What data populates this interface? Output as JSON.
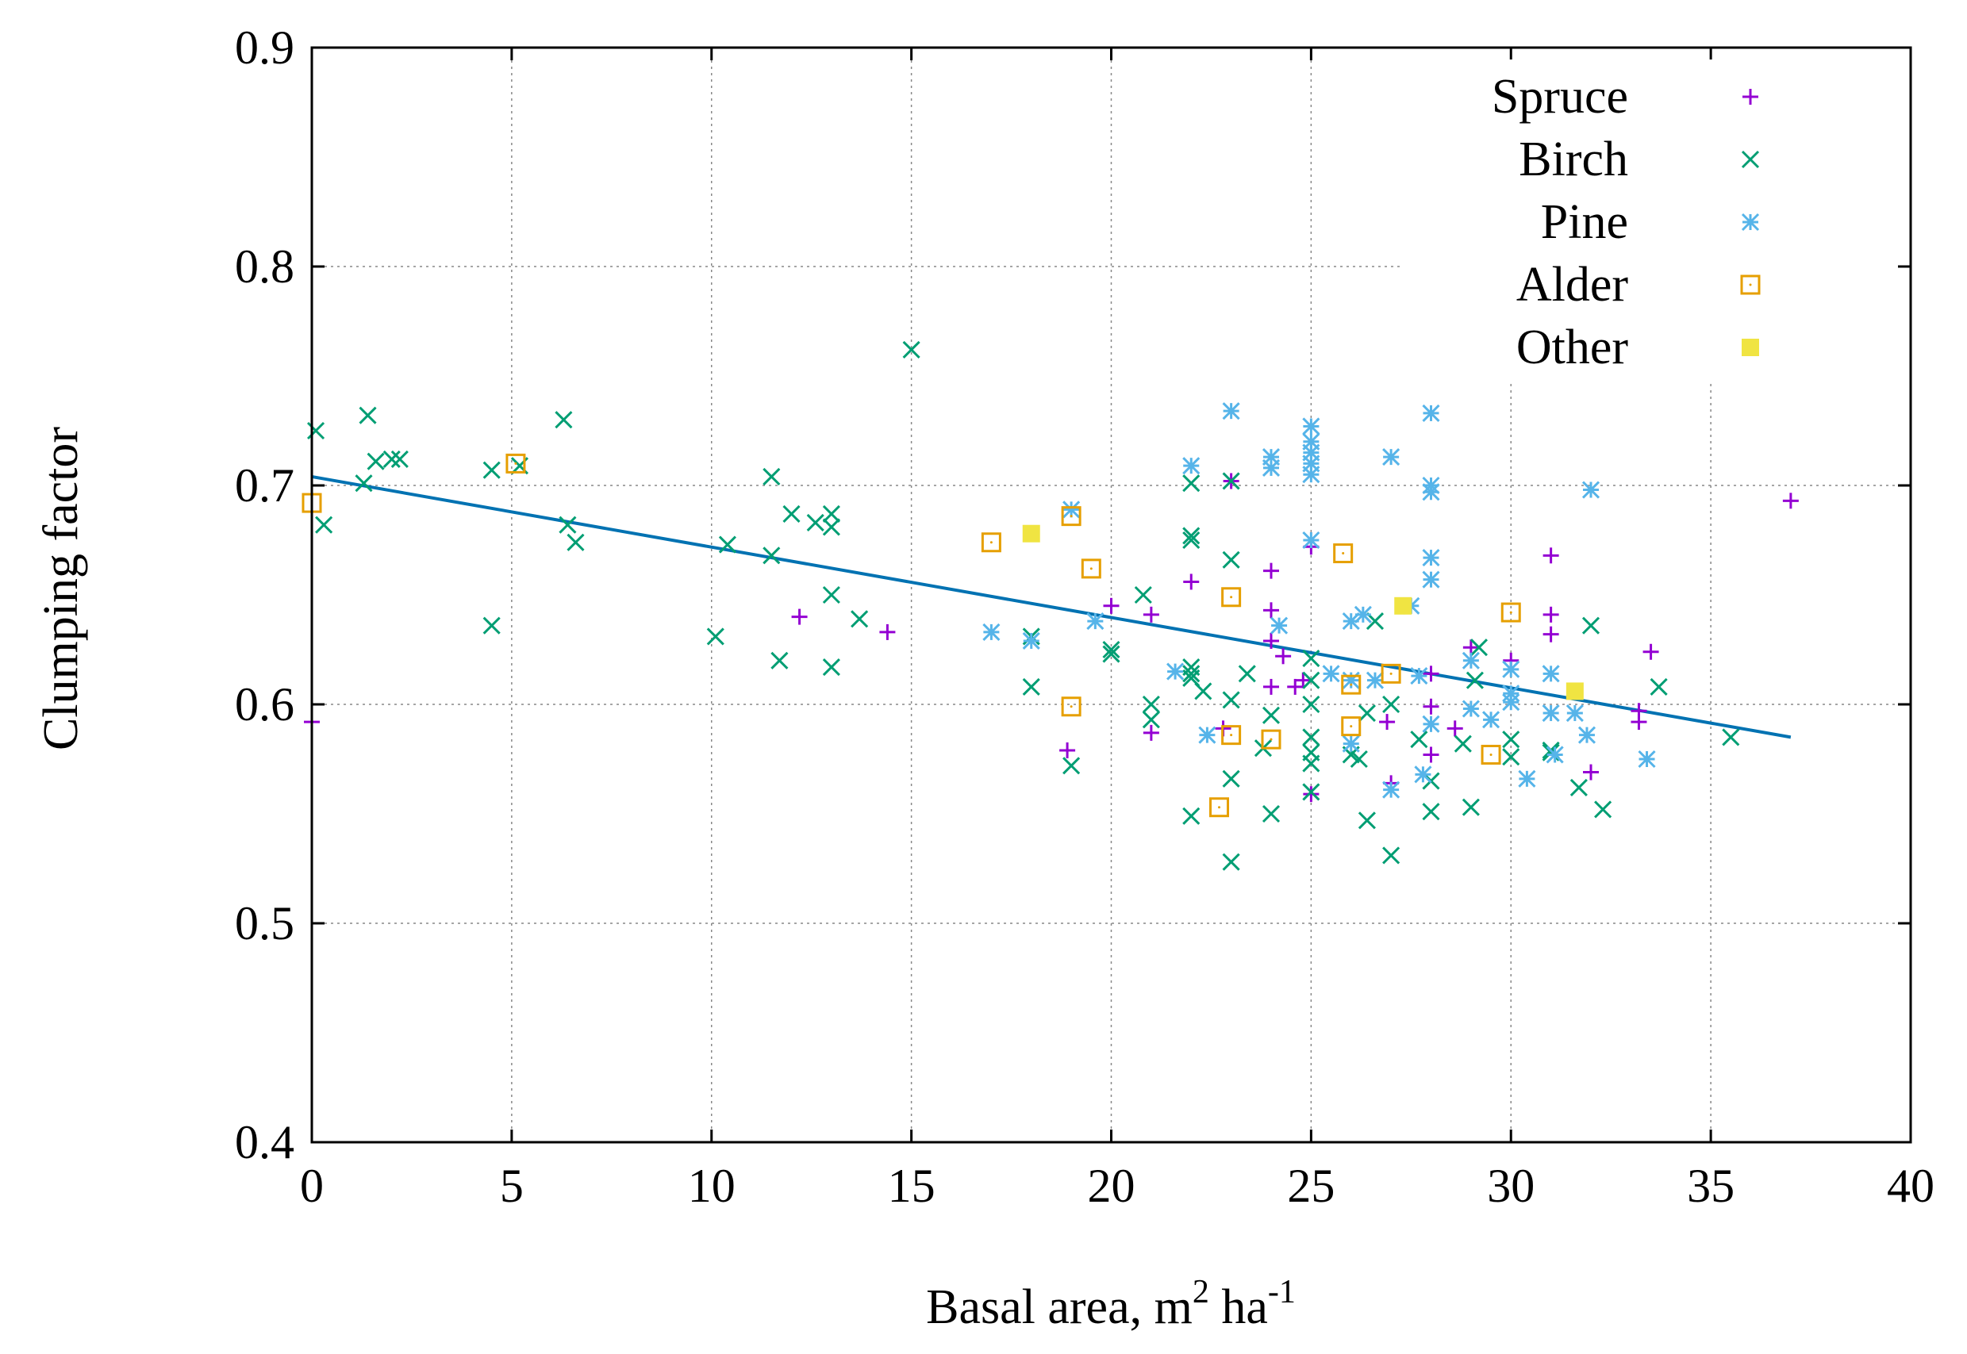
{
  "chart_data": {
    "type": "scatter",
    "xlabel": {
      "main": "Basal area, m",
      "sup1": "2",
      "mid": " ha",
      "sup2": "-1"
    },
    "ylabel": "Clumping factor",
    "xlim": [
      0,
      40
    ],
    "ylim": [
      0.4,
      0.9
    ],
    "xticks": [
      "0",
      "5",
      "10",
      "15",
      "20",
      "25",
      "30",
      "35",
      "40"
    ],
    "yticks": [
      "0.4",
      "0.5",
      "0.6",
      "0.7",
      "0.8",
      "0.9"
    ],
    "grid": true,
    "legend_position": "top-right",
    "series": [
      {
        "name": "Spruce",
        "marker": "plus",
        "color": "#9400d3",
        "points": [
          [
            0.0,
            0.592
          ],
          [
            12.2,
            0.64
          ],
          [
            14.4,
            0.633
          ],
          [
            18.9,
            0.579
          ],
          [
            20.0,
            0.645
          ],
          [
            21.0,
            0.587
          ],
          [
            21.0,
            0.641
          ],
          [
            22.0,
            0.656
          ],
          [
            22.8,
            0.589
          ],
          [
            23.0,
            0.702
          ],
          [
            24.0,
            0.661
          ],
          [
            24.0,
            0.643
          ],
          [
            24.0,
            0.629
          ],
          [
            24.0,
            0.608
          ],
          [
            24.3,
            0.622
          ],
          [
            24.6,
            0.608
          ],
          [
            24.8,
            0.611
          ],
          [
            25.0,
            0.559
          ],
          [
            25.0,
            0.672
          ],
          [
            26.9,
            0.592
          ],
          [
            27.0,
            0.564
          ],
          [
            28.0,
            0.614
          ],
          [
            28.0,
            0.577
          ],
          [
            28.0,
            0.599
          ],
          [
            28.6,
            0.589
          ],
          [
            29.0,
            0.626
          ],
          [
            30.0,
            0.62
          ],
          [
            31.0,
            0.668
          ],
          [
            31.0,
            0.641
          ],
          [
            31.0,
            0.632
          ],
          [
            32.0,
            0.569
          ],
          [
            33.2,
            0.592
          ],
          [
            33.2,
            0.597
          ],
          [
            33.5,
            0.624
          ],
          [
            37.0,
            0.693
          ]
        ]
      },
      {
        "name": "Birch",
        "marker": "cross",
        "color": "#009e73",
        "points": [
          [
            0.1,
            0.725
          ],
          [
            0.3,
            0.682
          ],
          [
            1.3,
            0.701
          ],
          [
            1.4,
            0.732
          ],
          [
            1.6,
            0.711
          ],
          [
            2.0,
            0.712
          ],
          [
            2.2,
            0.712
          ],
          [
            4.5,
            0.707
          ],
          [
            4.5,
            0.636
          ],
          [
            5.2,
            0.709
          ],
          [
            6.3,
            0.73
          ],
          [
            6.4,
            0.682
          ],
          [
            6.6,
            0.674
          ],
          [
            10.1,
            0.631
          ],
          [
            10.4,
            0.673
          ],
          [
            11.5,
            0.704
          ],
          [
            11.5,
            0.668
          ],
          [
            11.7,
            0.62
          ],
          [
            12.0,
            0.687
          ],
          [
            12.6,
            0.683
          ],
          [
            13.0,
            0.687
          ],
          [
            13.0,
            0.681
          ],
          [
            13.0,
            0.65
          ],
          [
            13.0,
            0.617
          ],
          [
            13.7,
            0.639
          ],
          [
            15.0,
            0.762
          ],
          [
            18.0,
            0.631
          ],
          [
            18.0,
            0.608
          ],
          [
            19.0,
            0.572
          ],
          [
            20.0,
            0.625
          ],
          [
            20.0,
            0.623
          ],
          [
            20.8,
            0.65
          ],
          [
            21.0,
            0.6
          ],
          [
            21.0,
            0.593
          ],
          [
            22.0,
            0.701
          ],
          [
            22.0,
            0.677
          ],
          [
            22.0,
            0.675
          ],
          [
            22.0,
            0.617
          ],
          [
            22.0,
            0.614
          ],
          [
            22.0,
            0.612
          ],
          [
            22.0,
            0.549
          ],
          [
            22.3,
            0.606
          ],
          [
            23.0,
            0.702
          ],
          [
            23.0,
            0.666
          ],
          [
            23.0,
            0.602
          ],
          [
            23.0,
            0.566
          ],
          [
            23.0,
            0.528
          ],
          [
            23.4,
            0.614
          ],
          [
            23.8,
            0.58
          ],
          [
            24.0,
            0.595
          ],
          [
            24.0,
            0.55
          ],
          [
            25.0,
            0.621
          ],
          [
            25.0,
            0.611
          ],
          [
            25.0,
            0.6
          ],
          [
            25.0,
            0.585
          ],
          [
            25.0,
            0.578
          ],
          [
            25.0,
            0.573
          ],
          [
            25.0,
            0.56
          ],
          [
            26.0,
            0.577
          ],
          [
            26.2,
            0.575
          ],
          [
            26.4,
            0.596
          ],
          [
            26.4,
            0.547
          ],
          [
            26.6,
            0.638
          ],
          [
            27.0,
            0.6
          ],
          [
            27.0,
            0.531
          ],
          [
            27.7,
            0.584
          ],
          [
            28.0,
            0.565
          ],
          [
            28.0,
            0.551
          ],
          [
            28.8,
            0.582
          ],
          [
            29.0,
            0.553
          ],
          [
            29.1,
            0.611
          ],
          [
            29.2,
            0.626
          ],
          [
            30.0,
            0.584
          ],
          [
            30.0,
            0.576
          ],
          [
            31.0,
            0.578
          ],
          [
            31.0,
            0.579
          ],
          [
            31.7,
            0.562
          ],
          [
            32.0,
            0.636
          ],
          [
            32.3,
            0.552
          ],
          [
            33.7,
            0.608
          ],
          [
            35.5,
            0.585
          ]
        ]
      },
      {
        "name": "Pine",
        "marker": "star",
        "color": "#56b4e9",
        "points": [
          [
            17.0,
            0.633
          ],
          [
            18.0,
            0.629
          ],
          [
            19.0,
            0.689
          ],
          [
            19.6,
            0.638
          ],
          [
            21.6,
            0.615
          ],
          [
            22.0,
            0.709
          ],
          [
            22.4,
            0.586
          ],
          [
            23.0,
            0.734
          ],
          [
            24.0,
            0.713
          ],
          [
            24.0,
            0.708
          ],
          [
            24.2,
            0.636
          ],
          [
            25.0,
            0.727
          ],
          [
            25.0,
            0.72
          ],
          [
            25.0,
            0.715
          ],
          [
            25.0,
            0.71
          ],
          [
            25.0,
            0.705
          ],
          [
            25.0,
            0.675
          ],
          [
            25.5,
            0.614
          ],
          [
            26.0,
            0.638
          ],
          [
            26.0,
            0.611
          ],
          [
            26.0,
            0.582
          ],
          [
            26.3,
            0.641
          ],
          [
            26.6,
            0.611
          ],
          [
            27.0,
            0.713
          ],
          [
            27.0,
            0.561
          ],
          [
            27.5,
            0.645
          ],
          [
            27.7,
            0.613
          ],
          [
            27.8,
            0.568
          ],
          [
            28.0,
            0.733
          ],
          [
            28.0,
            0.7
          ],
          [
            28.0,
            0.697
          ],
          [
            28.0,
            0.667
          ],
          [
            28.0,
            0.657
          ],
          [
            28.0,
            0.591
          ],
          [
            29.0,
            0.62
          ],
          [
            29.0,
            0.598
          ],
          [
            29.5,
            0.593
          ],
          [
            30.0,
            0.616
          ],
          [
            30.0,
            0.605
          ],
          [
            30.0,
            0.601
          ],
          [
            30.4,
            0.566
          ],
          [
            31.0,
            0.614
          ],
          [
            31.0,
            0.596
          ],
          [
            31.1,
            0.577
          ],
          [
            31.6,
            0.596
          ],
          [
            31.9,
            0.586
          ],
          [
            32.0,
            0.698
          ],
          [
            33.4,
            0.575
          ]
        ]
      },
      {
        "name": "Alder",
        "marker": "square-open",
        "color": "#e69f00",
        "points": [
          [
            0.0,
            0.692
          ],
          [
            5.1,
            0.71
          ],
          [
            17.0,
            0.674
          ],
          [
            19.0,
            0.686
          ],
          [
            19.0,
            0.599
          ],
          [
            19.5,
            0.662
          ],
          [
            22.7,
            0.553
          ],
          [
            23.0,
            0.649
          ],
          [
            23.0,
            0.586
          ],
          [
            24.0,
            0.584
          ],
          [
            25.8,
            0.669
          ],
          [
            26.0,
            0.609
          ],
          [
            26.0,
            0.59
          ],
          [
            27.0,
            0.614
          ],
          [
            29.5,
            0.577
          ],
          [
            30.0,
            0.642
          ]
        ]
      },
      {
        "name": "Other",
        "marker": "square-filled",
        "color": "#f0e442",
        "points": [
          [
            18.0,
            0.678
          ],
          [
            27.3,
            0.645
          ],
          [
            31.6,
            0.606
          ]
        ]
      }
    ],
    "trend_line": {
      "color": "#0072b2",
      "points": [
        [
          0.0,
          0.704
        ],
        [
          37.0,
          0.585
        ]
      ]
    }
  }
}
